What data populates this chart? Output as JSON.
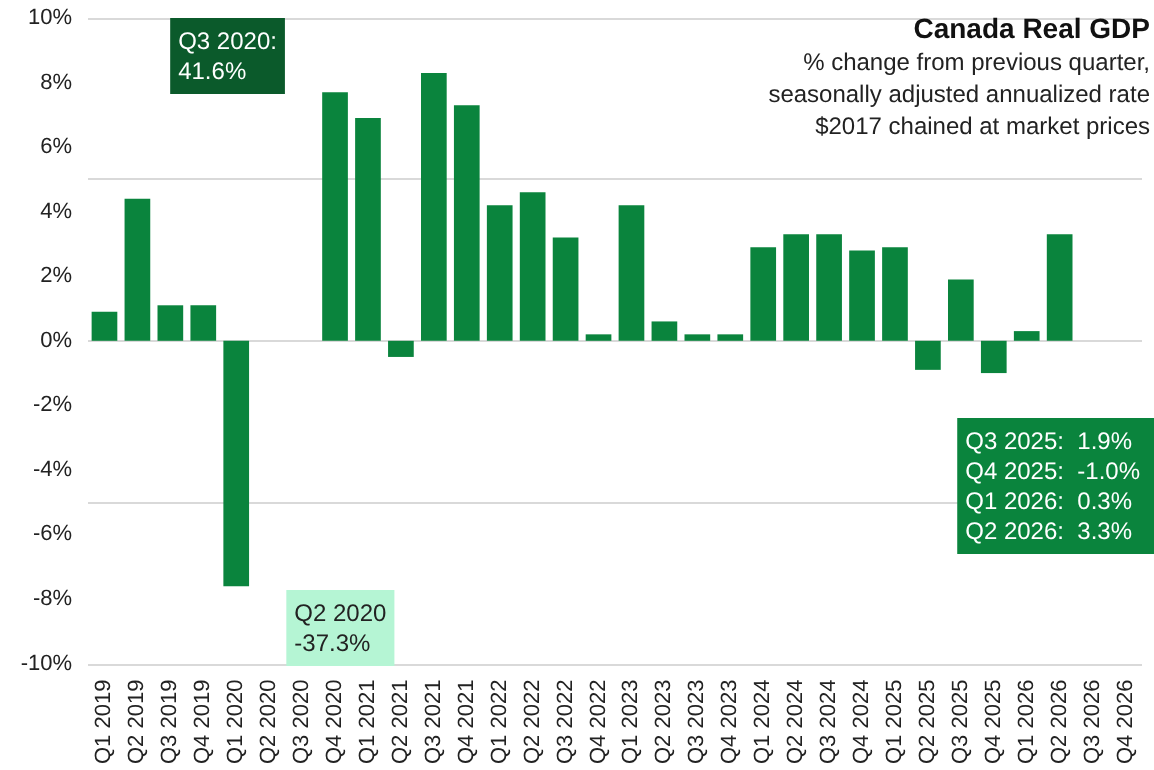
{
  "chart_data": {
    "type": "bar",
    "title": "Canada Real GDP",
    "subtitle": "% change from previous quarter,\nseasonally adjusted annualized rate\n$2017 chained at market prices",
    "categories": [
      "Q1 2019",
      "Q2 2019",
      "Q3 2019",
      "Q4 2019",
      "Q1 2020",
      "Q2 2020",
      "Q3 2020",
      "Q4 2020",
      "Q1 2021",
      "Q2 2021",
      "Q3 2021",
      "Q4 2021",
      "Q1 2022",
      "Q2 2022",
      "Q3 2022",
      "Q4 2022",
      "Q1 2023",
      "Q2 2023",
      "Q3 2023",
      "Q4 2023",
      "Q1 2024",
      "Q2 2024",
      "Q3 2024",
      "Q4 2024",
      "Q1 2025",
      "Q2 2025",
      "Q3 2025",
      "Q4 2025",
      "Q1 2026",
      "Q2 2026",
      "Q3 2026",
      "Q4 2026"
    ],
    "values": [
      0.9,
      4.4,
      1.1,
      1.1,
      -7.6,
      null,
      null,
      7.7,
      6.9,
      -0.5,
      8.3,
      7.3,
      4.2,
      4.6,
      3.2,
      0.2,
      4.2,
      0.6,
      0.2,
      0.2,
      2.9,
      3.3,
      3.3,
      2.8,
      2.9,
      -0.9,
      1.9,
      -1.0,
      0.3,
      3.3,
      null,
      null
    ],
    "colors": [
      "#0a843d",
      "#0a843d",
      "#0a843d",
      "#0a843d",
      "#0a843d",
      "#b5f5d4",
      "#0b5a2b",
      "#0a843d",
      "#0a843d",
      "#0a843d",
      "#0a843d",
      "#0a843d",
      "#0a843d",
      "#0a843d",
      "#0a843d",
      "#0a843d",
      "#0a843d",
      "#0a843d",
      "#0a843d",
      "#0a843d",
      "#0a843d",
      "#0a843d",
      "#0a843d",
      "#0a843d",
      "#0a843d",
      "#0a843d",
      "#0a843d",
      "#0a843d",
      "#0a843d",
      "#0a843d",
      "#0a843d",
      "#0a843d"
    ],
    "ylim": [
      -10,
      10
    ],
    "yticks": [
      {
        "value": -10,
        "label": "-10%"
      },
      {
        "value": -8,
        "label": "-8%"
      },
      {
        "value": -6,
        "label": "-6%"
      },
      {
        "value": -4,
        "label": "-4%"
      },
      {
        "value": -2,
        "label": "-2%"
      },
      {
        "value": 0,
        "label": "0%"
      },
      {
        "value": 2,
        "label": "2%"
      },
      {
        "value": 4,
        "label": "4%"
      },
      {
        "value": 6,
        "label": "6%"
      },
      {
        "value": 8,
        "label": "8%"
      },
      {
        "value": 10,
        "label": "10%"
      }
    ],
    "grid": "y",
    "annotations": [
      "Q3 2020:\n41.6%",
      "Q2 2020\n-37.3%",
      "Q3 2025:  1.9%\nQ4 2025:  -1.0%\nQ1 2026:  0.3%\nQ2 2026:  3.3%"
    ]
  }
}
